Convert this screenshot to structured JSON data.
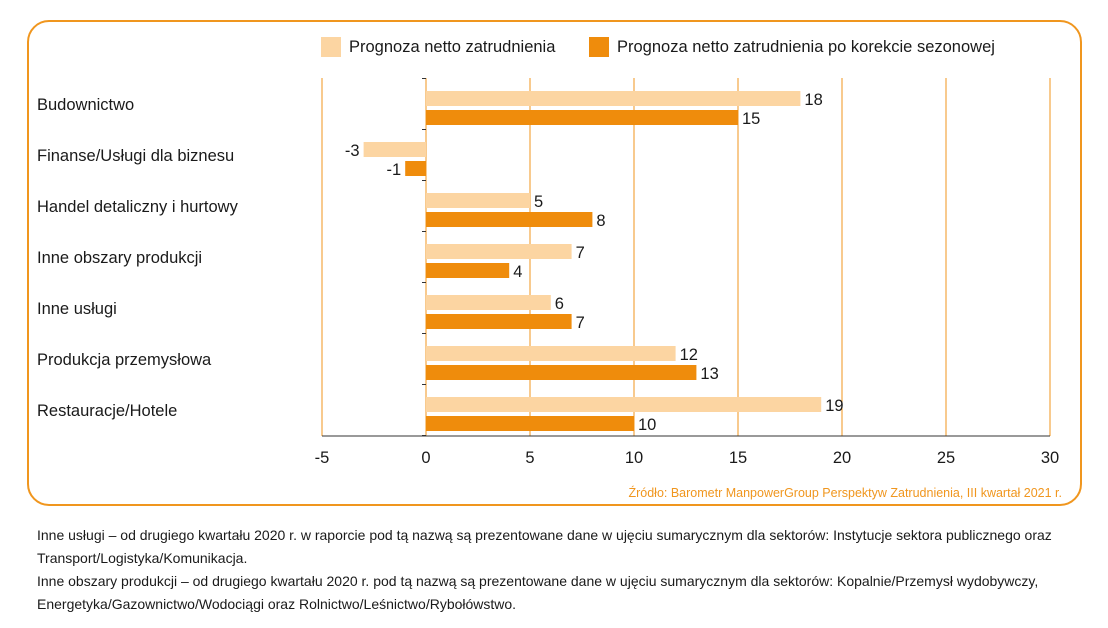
{
  "chart_data": {
    "type": "bar",
    "orientation": "horizontal",
    "categories": [
      "Budownictwo",
      "Finanse/Usługi dla biznesu",
      "Handel detaliczny i hurtowy",
      "Inne obszary produkcji",
      "Inne usługi",
      "Produkcja przemysłowa",
      "Restauracje/Hotele"
    ],
    "series": [
      {
        "name": "Prognoza netto zatrudnienia",
        "values": [
          18,
          -3,
          5,
          7,
          6,
          12,
          19
        ],
        "color": "#fcd5a2"
      },
      {
        "name": "Prognoza netto zatrudnienia po korekcie sezonowej",
        "values": [
          15,
          -1,
          8,
          4,
          7,
          13,
          10
        ],
        "color": "#ef8c0c"
      }
    ],
    "xlim": [
      -5,
      30
    ],
    "xticks": [
      -5,
      0,
      5,
      10,
      15,
      20,
      25,
      30
    ],
    "grid": true,
    "gridColor": "#f0961e",
    "legend": "top"
  },
  "source": "Źródło: Barometr ManpowerGroup Perspektyw Zatrudnienia, III kwartał 2021 r.",
  "notes": [
    "Inne usługi – od drugiego kwartału 2020 r. w raporcie pod tą nazwą są prezentowane dane w ujęciu sumarycznym dla sektorów: Instytucje sektora publicznego oraz Transport/Logistyka/Komunikacja.",
    "Inne obszary produkcji – od drugiego kwartału 2020 r. pod tą nazwą są prezentowane dane w ujęciu sumarycznym dla sektorów: Kopalnie/Przemysł wydobywczy, Energetyka/Gazownictwo/Wodociągi oraz Rolnictwo/Leśnictwo/Rybołówstwo."
  ]
}
